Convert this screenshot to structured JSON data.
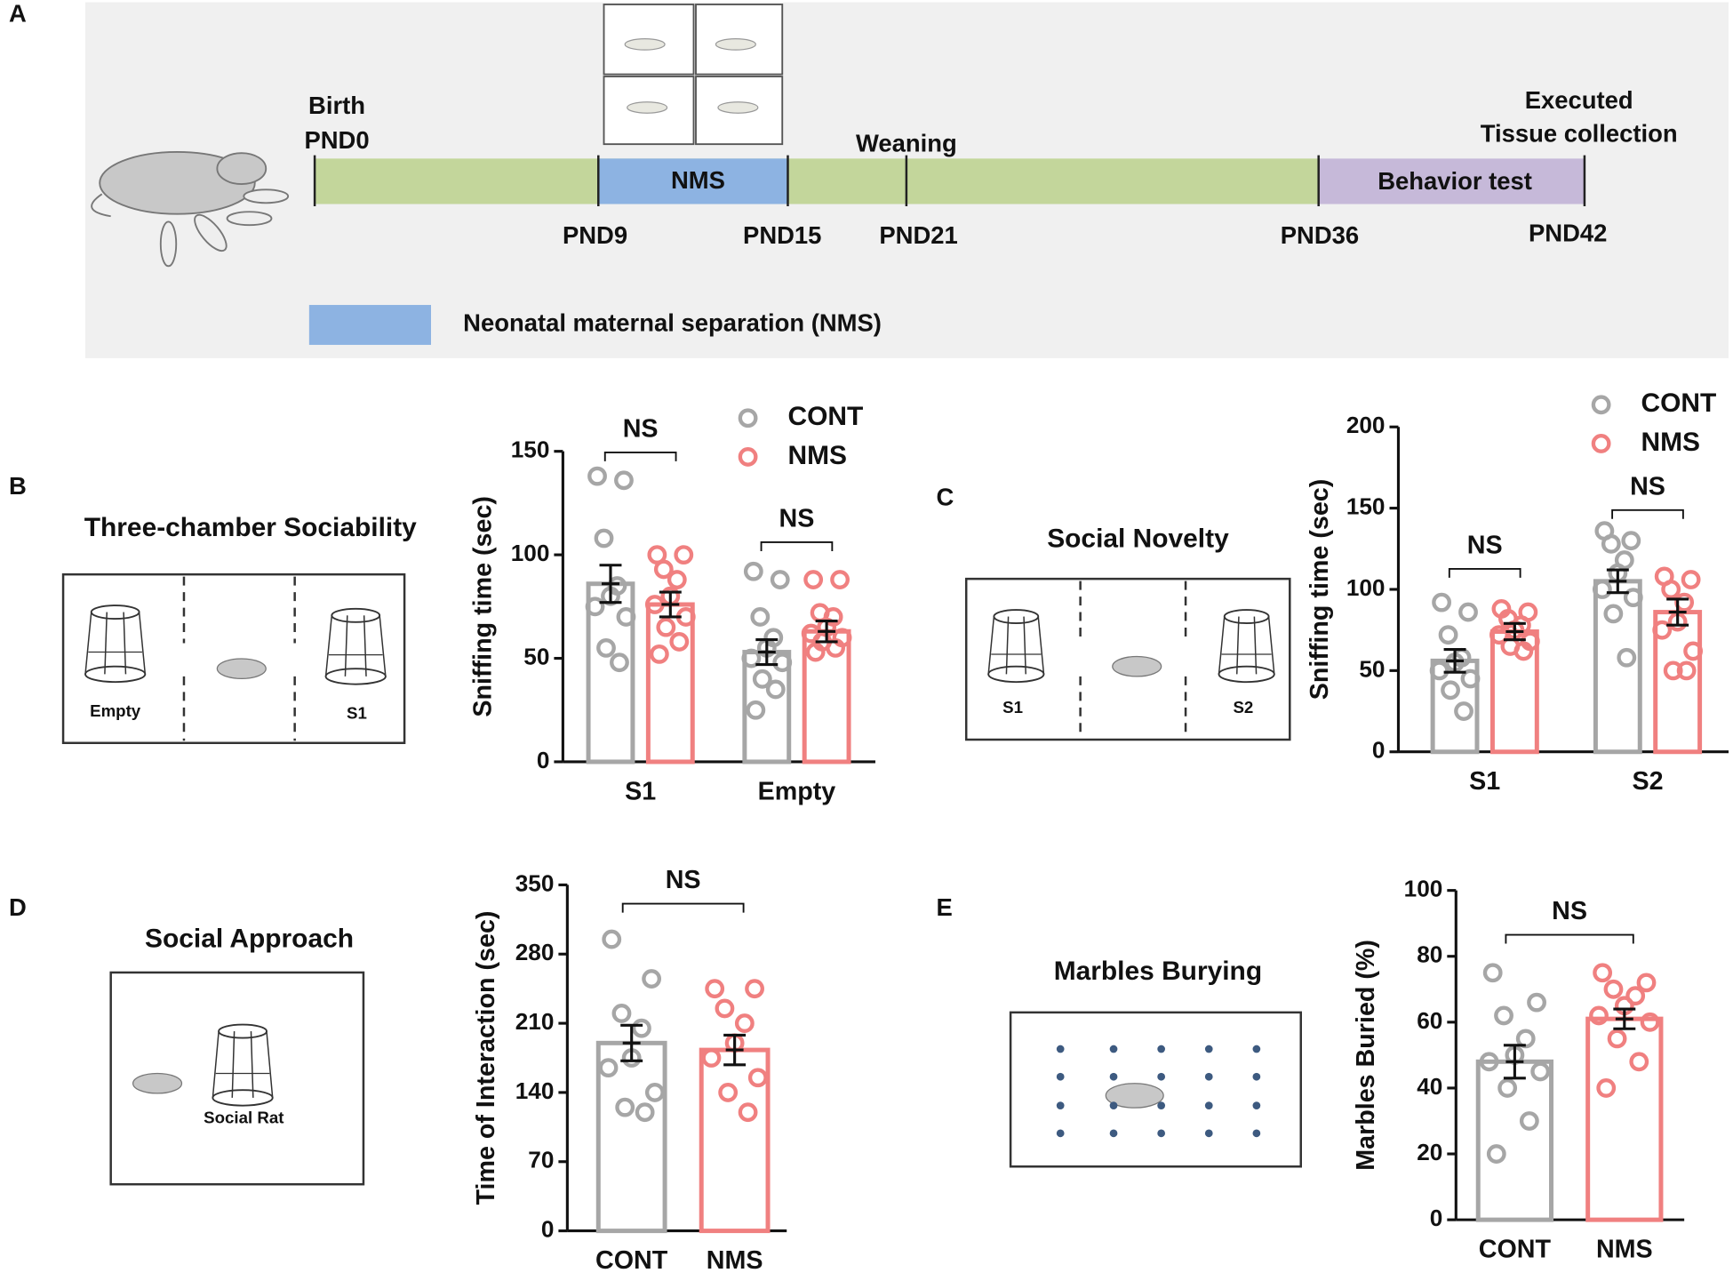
{
  "panel_labels": [
    "A",
    "B",
    "C",
    "D",
    "E"
  ],
  "timeline": {
    "segments": [
      "NMS",
      "Behavior test"
    ],
    "marks": [
      "Birth",
      "PND0",
      "Weaning",
      "Executed",
      "Tissue collection"
    ],
    "days": [
      "PND9",
      "PND15",
      "PND21",
      "PND36",
      "PND42"
    ],
    "legend": "Neonatal maternal separation (NMS)"
  },
  "diagrams": [
    {
      "title": "Three-chamber Sociability",
      "labels": [
        "Empty",
        "S1"
      ]
    },
    {
      "title": "Social Novelty",
      "labels": [
        "S1",
        "S2"
      ]
    },
    {
      "title": "Social Approach",
      "labels": [
        "Social Rat"
      ]
    },
    {
      "title": "Marbles Burying"
    }
  ],
  "chart_data": [
    {
      "type": "bar",
      "ylabel": "Sniffing time (sec)",
      "categories": [
        "S1",
        "Empty"
      ],
      "ylim": [
        0,
        150
      ],
      "yticks": [
        0,
        50,
        100,
        150
      ],
      "annotations": [
        "NS",
        "NS"
      ],
      "series": [
        {
          "name": "CONT",
          "color": "#a6a6a6",
          "values": [
            86,
            53
          ],
          "errors": [
            9,
            6
          ],
          "points": [
            [
              138,
              136,
              108,
              85,
              80,
              75,
              70,
              55,
              48
            ],
            [
              92,
              88,
              70,
              60,
              55,
              50,
              48,
              40,
              35,
              25
            ]
          ]
        },
        {
          "name": "NMS",
          "color": "#f08080",
          "values": [
            76,
            63
          ],
          "errors": [
            6,
            5
          ],
          "points": [
            [
              100,
              100,
              93,
              88,
              80,
              76,
              70,
              65,
              58,
              52
            ],
            [
              88,
              88,
              72,
              70,
              65,
              62,
              60,
              58,
              55,
              53
            ]
          ]
        }
      ]
    },
    {
      "type": "bar",
      "ylabel": "Sniffing time (sec)",
      "categories": [
        "S1",
        "S2"
      ],
      "ylim": [
        0,
        200
      ],
      "yticks": [
        0,
        50,
        100,
        150,
        200
      ],
      "annotations": [
        "NS",
        "NS"
      ],
      "series": [
        {
          "name": "CONT",
          "color": "#a6a6a6",
          "values": [
            56,
            105
          ],
          "errors": [
            7,
            7
          ],
          "points": [
            [
              92,
              86,
              72,
              58,
              55,
              50,
              45,
              38,
              25
            ],
            [
              136,
              130,
              128,
              118,
              110,
              100,
              95,
              85,
              58
            ]
          ]
        },
        {
          "name": "NMS",
          "color": "#f08080",
          "values": [
            74,
            86
          ],
          "errors": [
            5,
            8
          ],
          "points": [
            [
              88,
              86,
              82,
              78,
              75,
              72,
              68,
              65,
              62
            ],
            [
              108,
              106,
              100,
              92,
              80,
              75,
              62,
              50,
              50
            ]
          ]
        }
      ]
    },
    {
      "type": "bar",
      "ylabel": "Time of Interaction (sec)",
      "categories": [
        "CONT",
        "NMS"
      ],
      "colors": [
        "#a6a6a6",
        "#f08080"
      ],
      "values": [
        190,
        183
      ],
      "errors": [
        18,
        15
      ],
      "points": [
        [
          295,
          255,
          220,
          205,
          175,
          165,
          140,
          125,
          120
        ],
        [
          245,
          245,
          225,
          210,
          190,
          175,
          155,
          140,
          120
        ]
      ],
      "ylim": [
        0,
        350
      ],
      "yticks": [
        0,
        70,
        140,
        210,
        280,
        350
      ],
      "annotation": "NS"
    },
    {
      "type": "bar",
      "ylabel": "Marbles Buried (%)",
      "categories": [
        "CONT",
        "NMS"
      ],
      "colors": [
        "#a6a6a6",
        "#f08080"
      ],
      "values": [
        48,
        61
      ],
      "errors": [
        5,
        3
      ],
      "points": [
        [
          75,
          66,
          62,
          55,
          50,
          48,
          45,
          40,
          30,
          20
        ],
        [
          75,
          72,
          70,
          68,
          65,
          62,
          60,
          55,
          48,
          40
        ]
      ],
      "ylim": [
        0,
        100
      ],
      "yticks": [
        0,
        20,
        40,
        60,
        80,
        100
      ],
      "annotation": "NS"
    }
  ]
}
